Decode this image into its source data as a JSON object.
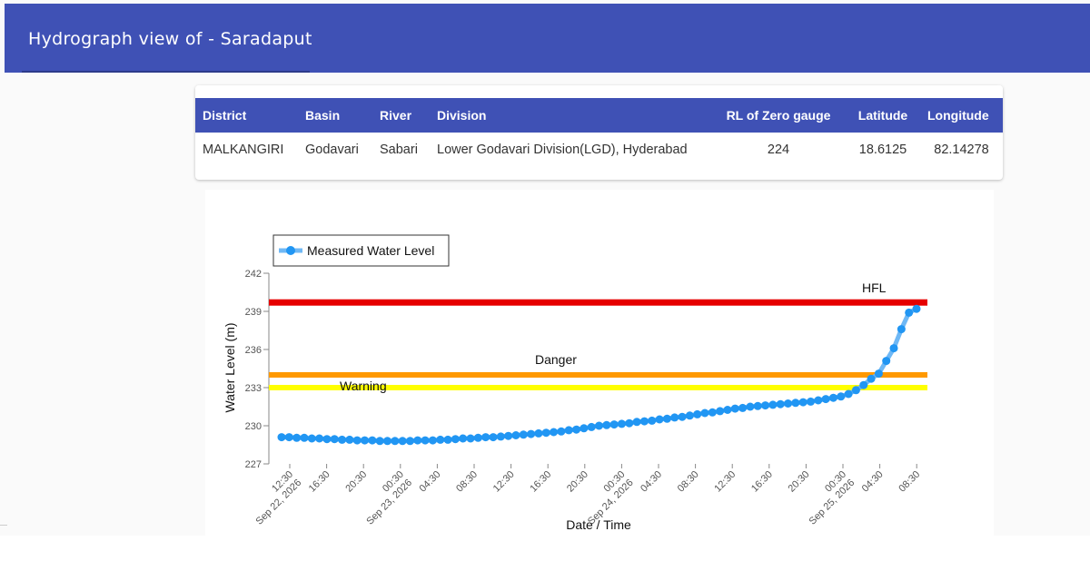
{
  "header": {
    "title": "Hydrograph view of - Saradaput"
  },
  "info_table": {
    "columns": [
      "District",
      "Basin",
      "River",
      "Division",
      "RL of Zero gauge",
      "Latitude",
      "Longitude"
    ],
    "row": [
      "MALKANGIRI",
      "Godavari",
      "Sabari",
      "Lower Godavari Division(LGD), Hyderabad",
      "224",
      "18.6125",
      "82.14278"
    ]
  },
  "chart_data": {
    "type": "line",
    "title": "",
    "xlabel": "Date / Time",
    "ylabel": "Water Level (m)",
    "ylim": [
      227,
      242
    ],
    "yticks": [
      227,
      230,
      233,
      236,
      239,
      242
    ],
    "grid": false,
    "legend": {
      "position": "top-left",
      "entries": [
        "Measured Water Level"
      ]
    },
    "xticks": [
      {
        "label": "12:30",
        "sub": "Sep 22, 2026"
      },
      {
        "label": "16:30",
        "sub": ""
      },
      {
        "label": "20:30",
        "sub": ""
      },
      {
        "label": "00:30",
        "sub": "Sep 23, 2026"
      },
      {
        "label": "04:30",
        "sub": ""
      },
      {
        "label": "08:30",
        "sub": ""
      },
      {
        "label": "12:30",
        "sub": ""
      },
      {
        "label": "16:30",
        "sub": ""
      },
      {
        "label": "20:30",
        "sub": ""
      },
      {
        "label": "00:30",
        "sub": "Sep 24, 2026"
      },
      {
        "label": "04:30",
        "sub": ""
      },
      {
        "label": "08:30",
        "sub": ""
      },
      {
        "label": "12:30",
        "sub": ""
      },
      {
        "label": "16:30",
        "sub": ""
      },
      {
        "label": "20:30",
        "sub": ""
      },
      {
        "label": "00:30",
        "sub": "Sep 25, 2026"
      },
      {
        "label": "04:30",
        "sub": ""
      },
      {
        "label": "08:30",
        "sub": ""
      }
    ],
    "reference_lines": [
      {
        "name": "HFL",
        "value": 239.7,
        "color": "#e60000"
      },
      {
        "name": "Danger",
        "value": 234.0,
        "color": "#ff9900"
      },
      {
        "name": "Warning",
        "value": 233.0,
        "color": "#ffff00"
      }
    ],
    "series": [
      {
        "name": "Measured Water Level",
        "color": "#2196f3",
        "values": [
          229.1,
          229.1,
          229.05,
          229.05,
          229.0,
          229.0,
          228.95,
          228.95,
          228.9,
          228.9,
          228.85,
          228.85,
          228.85,
          228.8,
          228.8,
          228.8,
          228.8,
          228.8,
          228.85,
          228.85,
          228.85,
          228.9,
          228.9,
          228.95,
          229.0,
          229.0,
          229.05,
          229.1,
          229.1,
          229.15,
          229.2,
          229.25,
          229.3,
          229.35,
          229.4,
          229.45,
          229.5,
          229.55,
          229.65,
          229.7,
          229.8,
          229.9,
          230.0,
          230.05,
          230.1,
          230.15,
          230.2,
          230.3,
          230.35,
          230.4,
          230.5,
          230.55,
          230.65,
          230.7,
          230.8,
          230.9,
          231.0,
          231.05,
          231.15,
          231.25,
          231.35,
          231.4,
          231.5,
          231.55,
          231.6,
          231.65,
          231.7,
          231.75,
          231.8,
          231.85,
          231.9,
          232.0,
          232.1,
          232.2,
          232.3,
          232.5,
          232.8,
          233.2,
          233.7,
          234.1,
          235.1,
          236.1,
          237.6,
          238.9,
          239.2
        ]
      }
    ]
  }
}
